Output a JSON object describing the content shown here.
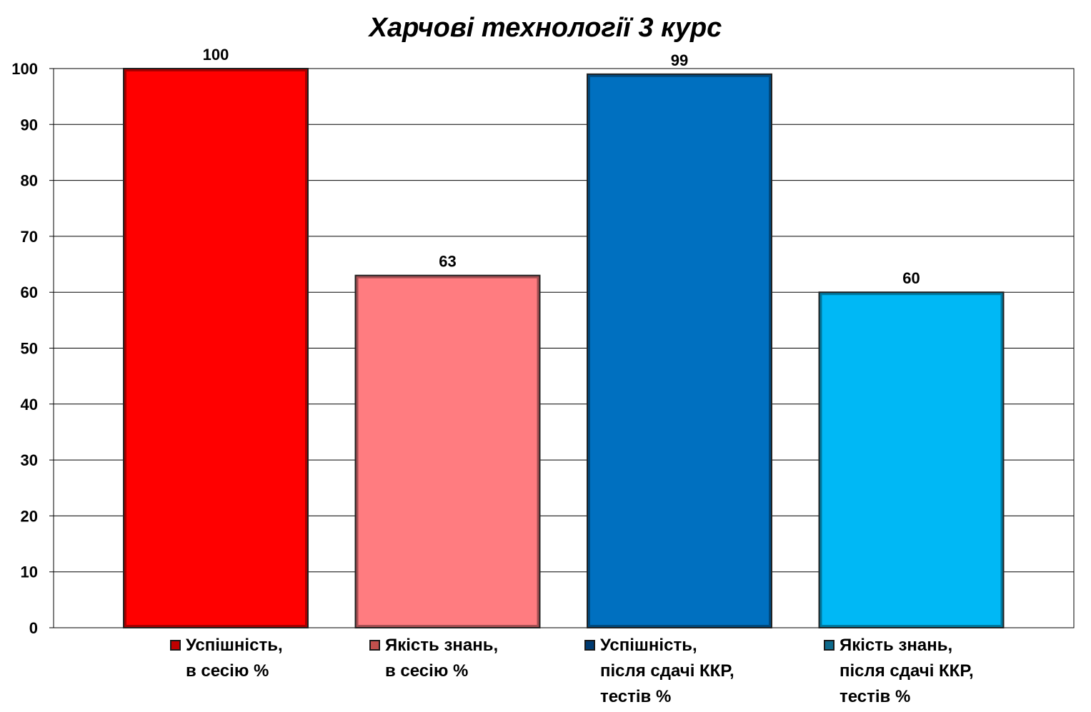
{
  "chart_data": {
    "type": "bar",
    "title": "Харчові технології 3 курс",
    "xlabel": "",
    "ylabel": "",
    "ylim": [
      0,
      100
    ],
    "y_ticks": [
      "0",
      "10",
      "20",
      "30",
      "40",
      "50",
      "60",
      "70",
      "80",
      "90",
      "100"
    ],
    "grid": true,
    "legend_placement": "bottom",
    "series": [
      {
        "name": "Успішність, в сесію %",
        "legend_lines": [
          "Успішність,",
          "в сесію %"
        ],
        "value": 100,
        "value_label": "100",
        "color": "#ff0000",
        "legend_swatch_color": "#c00000"
      },
      {
        "name": "Якість знань, в сесію %",
        "legend_lines": [
          "Якість знань,",
          "в сесію %"
        ],
        "value": 63,
        "value_label": "63",
        "color": "#ff7c80",
        "legend_swatch_color": "#c0504d"
      },
      {
        "name": "Успішність, після сдачі ККР, тестів %",
        "legend_lines": [
          "Успішність,",
          "після сдачі ККР,",
          "тестів %"
        ],
        "value": 99,
        "value_label": "99",
        "color": "#0070c0",
        "legend_swatch_color": "#003a70"
      },
      {
        "name": "Якість знань, після сдачі ККР, тестів %",
        "legend_lines": [
          "Якість знань,",
          "після сдачі ККР,",
          "тестів %"
        ],
        "value": 60,
        "value_label": "60",
        "color": "#00b8f5",
        "legend_swatch_color": "#0e6a8c"
      }
    ]
  }
}
